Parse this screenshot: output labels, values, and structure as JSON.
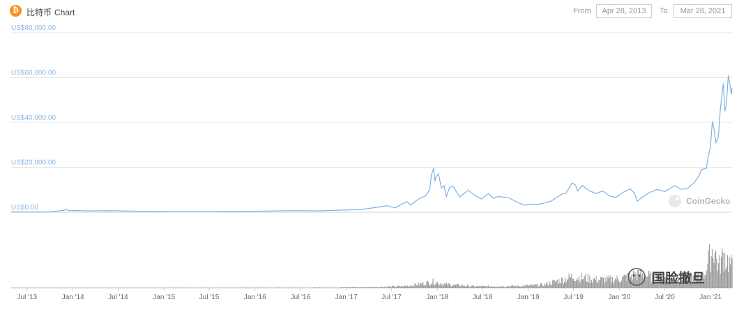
{
  "header": {
    "coin_symbol": "₿",
    "title": "比特币",
    "title_suffix": "Chart",
    "from_label": "From",
    "from_value": "Apr 28, 2013",
    "to_label": "To",
    "to_value": "Mar 28, 2021"
  },
  "watermark": {
    "brand": "CoinGecko"
  },
  "overlay_badge": {
    "text": "国脸撤旦"
  },
  "colors": {
    "price_line": "#7fb0e0",
    "volume_bars": "#9a9a9a",
    "bitcoin_orange": "#f7931a",
    "grid": "#e6e6e6"
  },
  "chart_data": {
    "type": "line",
    "x_axis_type": "date",
    "x_tick_labels": [
      "Jul '13",
      "Jan '14",
      "Jul '14",
      "Jan '15",
      "Jul '15",
      "Jan '16",
      "Jul '16",
      "Jan '17",
      "Jul '17",
      "Jan '18",
      "Jul '18",
      "Jan '19",
      "Jul '19",
      "Jan '20",
      "Jul '20",
      "Jan '21"
    ],
    "x_tick_dates": [
      "2013-07-01",
      "2014-01-01",
      "2014-07-01",
      "2015-01-01",
      "2015-07-01",
      "2016-01-01",
      "2016-07-01",
      "2017-01-01",
      "2017-07-01",
      "2018-01-01",
      "2018-07-01",
      "2019-01-01",
      "2019-07-01",
      "2020-01-01",
      "2020-07-01",
      "2021-01-01"
    ],
    "y_tick_labels": [
      "US$0.00",
      "US$20,000.00",
      "US$40,000.00",
      "US$60,000.00",
      "US$80,000.00"
    ],
    "y_tick_values": [
      0,
      20000,
      40000,
      60000,
      80000
    ],
    "ylim": [
      0,
      80000
    ],
    "xlim": [
      "2013-04-28",
      "2021-03-28"
    ],
    "grid": true,
    "series": [
      {
        "values": [
          [
            "2013-04-28",
            130
          ],
          [
            "2013-07-01",
            90
          ],
          [
            "2013-10-01",
            130
          ],
          [
            "2013-11-25",
            800
          ],
          [
            "2013-12-04",
            1150
          ],
          [
            "2013-12-20",
            650
          ],
          [
            "2014-01-01",
            770
          ],
          [
            "2014-03-01",
            580
          ],
          [
            "2014-06-01",
            650
          ],
          [
            "2014-09-01",
            450
          ],
          [
            "2014-12-01",
            370
          ],
          [
            "2015-01-15",
            200
          ],
          [
            "2015-06-01",
            230
          ],
          [
            "2015-11-01",
            320
          ],
          [
            "2016-01-01",
            430
          ],
          [
            "2016-06-15",
            700
          ],
          [
            "2016-09-01",
            600
          ],
          [
            "2017-01-01",
            1000
          ],
          [
            "2017-03-01",
            1200
          ],
          [
            "2017-05-25",
            2500
          ],
          [
            "2017-06-12",
            2900
          ],
          [
            "2017-07-15",
            1900
          ],
          [
            "2017-08-10",
            3500
          ],
          [
            "2017-09-01",
            4700
          ],
          [
            "2017-09-15",
            3200
          ],
          [
            "2017-10-20",
            6000
          ],
          [
            "2017-11-15",
            7300
          ],
          [
            "2017-12-01",
            10000
          ],
          [
            "2017-12-08",
            16500
          ],
          [
            "2017-12-17",
            19500
          ],
          [
            "2017-12-22",
            13800
          ],
          [
            "2017-12-27",
            16000
          ],
          [
            "2018-01-06",
            17100
          ],
          [
            "2018-01-17",
            10800
          ],
          [
            "2018-01-28",
            11800
          ],
          [
            "2018-02-06",
            6900
          ],
          [
            "2018-02-20",
            11200
          ],
          [
            "2018-03-05",
            11500
          ],
          [
            "2018-04-01",
            6800
          ],
          [
            "2018-05-05",
            9800
          ],
          [
            "2018-06-01",
            7500
          ],
          [
            "2018-06-28",
            5900
          ],
          [
            "2018-07-25",
            8300
          ],
          [
            "2018-08-14",
            6200
          ],
          [
            "2018-09-01",
            7000
          ],
          [
            "2018-10-15",
            6400
          ],
          [
            "2018-11-20",
            4300
          ],
          [
            "2018-12-15",
            3200
          ],
          [
            "2019-01-10",
            3600
          ],
          [
            "2019-02-08",
            3400
          ],
          [
            "2019-04-02",
            4900
          ],
          [
            "2019-05-14",
            8000
          ],
          [
            "2019-06-01",
            8600
          ],
          [
            "2019-06-26",
            13000
          ],
          [
            "2019-07-10",
            12000
          ],
          [
            "2019-07-17",
            9400
          ],
          [
            "2019-08-06",
            11900
          ],
          [
            "2019-09-01",
            9600
          ],
          [
            "2019-10-01",
            8300
          ],
          [
            "2019-10-26",
            9500
          ],
          [
            "2019-11-25",
            7100
          ],
          [
            "2019-12-18",
            6600
          ],
          [
            "2020-01-15",
            8800
          ],
          [
            "2020-02-13",
            10400
          ],
          [
            "2020-03-01",
            8600
          ],
          [
            "2020-03-13",
            4900
          ],
          [
            "2020-04-01",
            6600
          ],
          [
            "2020-05-01",
            8800
          ],
          [
            "2020-06-01",
            10100
          ],
          [
            "2020-07-01",
            9200
          ],
          [
            "2020-08-10",
            11800
          ],
          [
            "2020-09-05",
            10200
          ],
          [
            "2020-10-01",
            10600
          ],
          [
            "2020-10-25",
            13000
          ],
          [
            "2020-11-15",
            16000
          ],
          [
            "2020-11-25",
            19000
          ],
          [
            "2020-12-15",
            19500
          ],
          [
            "2020-12-20",
            23500
          ],
          [
            "2020-12-31",
            29000
          ],
          [
            "2021-01-08",
            40500
          ],
          [
            "2021-01-15",
            37000
          ],
          [
            "2021-01-22",
            31000
          ],
          [
            "2021-02-01",
            33500
          ],
          [
            "2021-02-09",
            46000
          ],
          [
            "2021-02-21",
            57500
          ],
          [
            "2021-02-27",
            45000
          ],
          [
            "2021-03-05",
            48000
          ],
          [
            "2021-03-13",
            61000
          ],
          [
            "2021-03-18",
            58000
          ],
          [
            "2021-03-25",
            52500
          ],
          [
            "2021-03-28",
            55500
          ]
        ]
      }
    ],
    "volume_series": {
      "type": "bar",
      "relative_level_profile": [
        [
          "2013-04-28",
          0.005
        ],
        [
          "2016-12-01",
          0.01
        ],
        [
          "2017-01-01",
          0.03
        ],
        [
          "2017-02-15",
          0.015
        ],
        [
          "2017-06-01",
          0.03
        ],
        [
          "2017-09-01",
          0.05
        ],
        [
          "2017-12-15",
          0.15
        ],
        [
          "2018-02-01",
          0.09
        ],
        [
          "2018-06-01",
          0.04
        ],
        [
          "2018-12-01",
          0.05
        ],
        [
          "2019-03-01",
          0.08
        ],
        [
          "2019-05-15",
          0.2
        ],
        [
          "2019-07-01",
          0.28
        ],
        [
          "2019-10-01",
          0.2
        ],
        [
          "2020-01-01",
          0.22
        ],
        [
          "2020-03-13",
          0.34
        ],
        [
          "2020-06-01",
          0.24
        ],
        [
          "2020-09-01",
          0.24
        ],
        [
          "2020-12-01",
          0.27
        ],
        [
          "2021-01-11",
          1.0
        ],
        [
          "2021-02-01",
          0.5
        ],
        [
          "2021-02-20",
          0.8
        ],
        [
          "2021-03-28",
          0.5
        ]
      ]
    }
  }
}
